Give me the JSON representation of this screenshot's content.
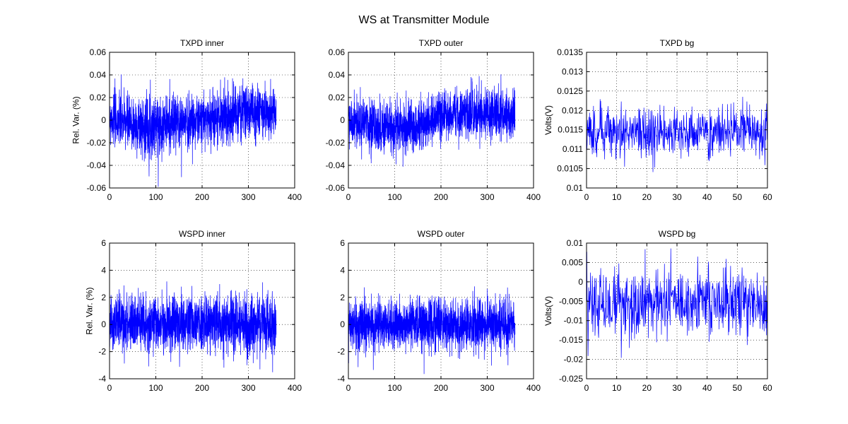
{
  "figure": {
    "title": "WS at Transmitter Module"
  },
  "chart_data": [
    {
      "type": "line",
      "title": "TXPD inner",
      "xlabel": "",
      "ylabel": "Rel. Var. (%)",
      "xlim": [
        0,
        400
      ],
      "ylim": [
        -0.06,
        0.06
      ],
      "xticks": [
        0,
        100,
        200,
        300,
        400
      ],
      "xtick_labels": [
        "0",
        "100",
        "200",
        "300",
        "400"
      ],
      "yticks": [
        -0.06,
        -0.04,
        -0.02,
        0,
        0.02,
        0.04,
        0.06
      ],
      "ytick_labels": [
        "-0.06",
        "-0.04",
        "-0.02",
        "0",
        "0.02",
        "0.04",
        "0.06"
      ],
      "grid": true,
      "color": "#0000ff",
      "series": [
        {
          "x_start": 0,
          "x_end": 360,
          "points": 1800,
          "envelope_x": [
            0,
            50,
            100,
            150,
            200,
            250,
            300,
            360
          ],
          "center": [
            0.003,
            -0.005,
            -0.004,
            -0.002,
            0.0,
            0.004,
            0.008,
            0.006
          ],
          "spread": [
            0.012,
            0.013,
            0.013,
            0.012,
            0.012,
            0.012,
            0.012,
            0.01
          ]
        }
      ]
    },
    {
      "type": "line",
      "title": "TXPD outer",
      "xlabel": "",
      "ylabel": "",
      "xlim": [
        0,
        400
      ],
      "ylim": [
        -0.06,
        0.06
      ],
      "xticks": [
        0,
        100,
        200,
        300,
        400
      ],
      "xtick_labels": [
        "0",
        "100",
        "200",
        "300",
        "400"
      ],
      "yticks": [
        -0.06,
        -0.04,
        -0.02,
        0,
        0.02,
        0.04,
        0.06
      ],
      "ytick_labels": [
        "-0.06",
        "-0.04",
        "-0.02",
        "0",
        "0.02",
        "0.04",
        "0.06"
      ],
      "grid": true,
      "color": "#0000ff",
      "series": [
        {
          "x_start": 0,
          "x_end": 360,
          "points": 1800,
          "envelope_x": [
            0,
            50,
            100,
            150,
            200,
            250,
            300,
            360
          ],
          "center": [
            -0.002,
            -0.006,
            -0.007,
            -0.005,
            0.003,
            0.008,
            0.006,
            0.005
          ],
          "spread": [
            0.011,
            0.011,
            0.011,
            0.011,
            0.011,
            0.011,
            0.011,
            0.01
          ]
        }
      ]
    },
    {
      "type": "line",
      "title": "TXPD bg",
      "xlabel": "",
      "ylabel": "Volts(V)",
      "xlim": [
        0,
        60
      ],
      "ylim": [
        0.01,
        0.0135
      ],
      "xticks": [
        0,
        10,
        20,
        30,
        40,
        50,
        60
      ],
      "xtick_labels": [
        "0",
        "10",
        "20",
        "30",
        "40",
        "50",
        "60"
      ],
      "yticks": [
        0.01,
        0.0105,
        0.011,
        0.0115,
        0.012,
        0.0125,
        0.013,
        0.0135
      ],
      "ytick_labels": [
        "0.01",
        "0.0105",
        "0.011",
        "0.0115",
        "0.012",
        "0.0125",
        "0.013",
        "0.0135"
      ],
      "grid": true,
      "color": "#0000ff",
      "series": [
        {
          "x_start": 0,
          "x_end": 60,
          "points": 600,
          "envelope_x": [
            0,
            60
          ],
          "center": [
            0.01143,
            0.01143
          ],
          "spread": [
            0.00032,
            0.00032
          ]
        }
      ]
    },
    {
      "type": "line",
      "title": "WSPD inner",
      "xlabel": "",
      "ylabel": "Rel. Var. (%)",
      "xlim": [
        0,
        400
      ],
      "ylim": [
        -4,
        6
      ],
      "xticks": [
        0,
        100,
        200,
        300,
        400
      ],
      "xtick_labels": [
        "0",
        "100",
        "200",
        "300",
        "400"
      ],
      "yticks": [
        -4,
        -2,
        0,
        2,
        4,
        6
      ],
      "ytick_labels": [
        "-4",
        "-2",
        "0",
        "2",
        "4",
        "6"
      ],
      "grid": true,
      "color": "#0000ff",
      "series": [
        {
          "x_start": 0,
          "x_end": 360,
          "points": 1800,
          "envelope_x": [
            0,
            360
          ],
          "center": [
            0.0,
            0.0
          ],
          "spread": [
            1.05,
            1.05
          ]
        }
      ]
    },
    {
      "type": "line",
      "title": "WSPD outer",
      "xlabel": "",
      "ylabel": "",
      "xlim": [
        0,
        400
      ],
      "ylim": [
        -4,
        6
      ],
      "xticks": [
        0,
        100,
        200,
        300,
        400
      ],
      "xtick_labels": [
        "0",
        "100",
        "200",
        "300",
        "400"
      ],
      "yticks": [
        -4,
        -2,
        0,
        2,
        4,
        6
      ],
      "ytick_labels": [
        "-4",
        "-2",
        "0",
        "2",
        "4",
        "6"
      ],
      "grid": true,
      "color": "#0000ff",
      "series": [
        {
          "x_start": 0,
          "x_end": 360,
          "points": 1800,
          "envelope_x": [
            0,
            360
          ],
          "center": [
            0.0,
            0.0
          ],
          "spread": [
            0.95,
            0.95
          ]
        }
      ]
    },
    {
      "type": "line",
      "title": "WSPD bg",
      "xlabel": "",
      "ylabel": "Volts(V)",
      "xlim": [
        0,
        60
      ],
      "ylim": [
        -0.025,
        0.01
      ],
      "xticks": [
        0,
        10,
        20,
        30,
        40,
        50,
        60
      ],
      "xtick_labels": [
        "0",
        "10",
        "20",
        "30",
        "40",
        "50",
        "60"
      ],
      "yticks": [
        -0.025,
        -0.02,
        -0.015,
        -0.01,
        -0.005,
        0,
        0.005,
        0.01
      ],
      "ytick_labels": [
        "-0.025",
        "-0.02",
        "-0.015",
        "-0.01",
        "-0.005",
        "0",
        "0.005",
        "0.01"
      ],
      "grid": true,
      "color": "#0000ff",
      "series": [
        {
          "x_start": 0,
          "x_end": 60,
          "points": 600,
          "envelope_x": [
            0,
            60
          ],
          "center": [
            -0.0055,
            -0.0055
          ],
          "spread": [
            0.0045,
            0.0045
          ]
        }
      ]
    }
  ]
}
